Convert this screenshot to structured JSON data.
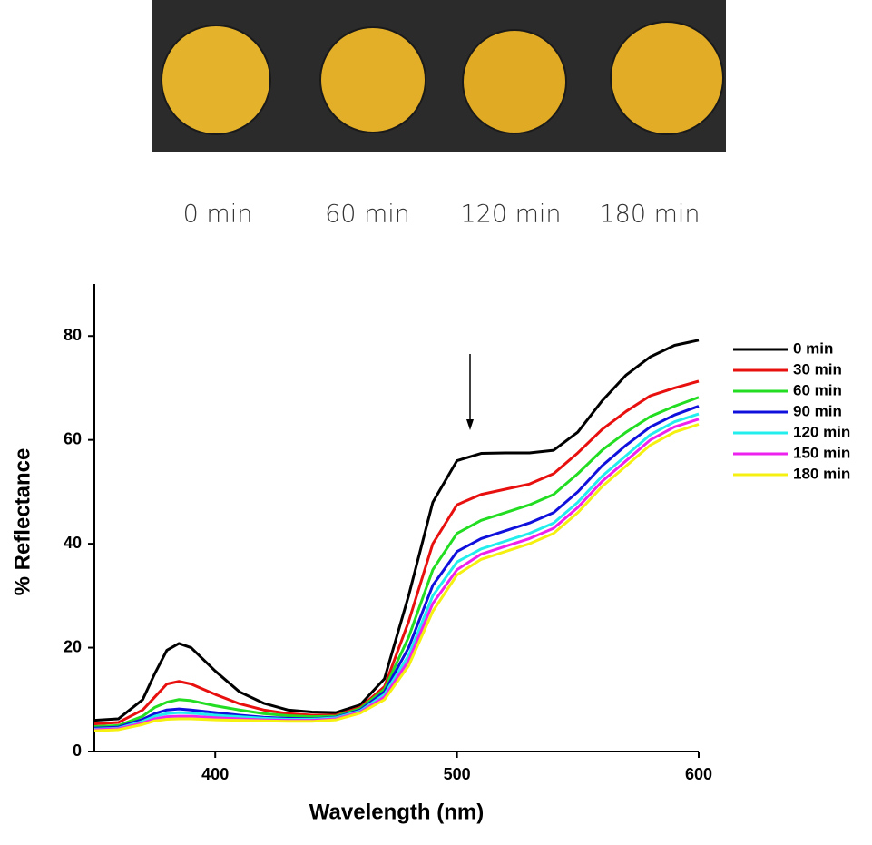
{
  "photo_labels": [
    "0 min",
    "60 min",
    "120 min",
    "180 min"
  ],
  "chart_data": {
    "type": "line",
    "xlabel": "Wavelength (nm)",
    "ylabel": "% Reflectance",
    "xlim": [
      350,
      600
    ],
    "ylim": [
      0,
      90
    ],
    "xticks": [
      400,
      500,
      600
    ],
    "yticks": [
      0,
      20,
      40,
      60,
      80
    ],
    "legend": "right",
    "x": [
      350,
      360,
      370,
      375,
      380,
      385,
      390,
      400,
      410,
      420,
      430,
      440,
      450,
      460,
      470,
      480,
      490,
      500,
      510,
      520,
      530,
      540,
      550,
      560,
      570,
      580,
      590,
      600
    ],
    "series": [
      {
        "name": "0 min",
        "color": "#000000",
        "values": [
          6,
          6.3,
          10,
          15,
          19.5,
          20.8,
          20,
          15.5,
          11.5,
          9.3,
          8,
          7.6,
          7.5,
          9,
          14,
          30,
          48,
          56,
          57.4,
          57.5,
          57.5,
          58,
          61.5,
          67.5,
          72.5,
          76,
          78.2,
          79.2
        ]
      },
      {
        "name": "30 min",
        "color": "#e8100f",
        "values": [
          5.3,
          5.6,
          8,
          10.5,
          13,
          13.5,
          13,
          11,
          9.2,
          8,
          7.3,
          7,
          7,
          8.5,
          12.5,
          25,
          40,
          47.5,
          49.5,
          50.5,
          51.5,
          53.5,
          57.5,
          62,
          65.5,
          68.5,
          70,
          71.3
        ]
      },
      {
        "name": "60 min",
        "color": "#22dd22",
        "values": [
          4.8,
          5,
          6.8,
          8.5,
          9.5,
          10,
          9.8,
          8.8,
          8,
          7.3,
          6.9,
          6.7,
          6.8,
          8.3,
          12,
          22,
          35,
          42,
          44.5,
          46,
          47.5,
          49.5,
          53.5,
          58,
          61.5,
          64.5,
          66.5,
          68.2
        ]
      },
      {
        "name": "90 min",
        "color": "#1010dd",
        "values": [
          4.5,
          4.7,
          6.2,
          7.3,
          8,
          8.2,
          8,
          7.5,
          7,
          6.6,
          6.4,
          6.3,
          6.6,
          8,
          11.5,
          20,
          32,
          38.5,
          41,
          42.5,
          44,
          46,
          50,
          55,
          59,
          62.5,
          64.8,
          66.5
        ]
      },
      {
        "name": "120 min",
        "color": "#22eeee",
        "values": [
          4.3,
          4.5,
          5.8,
          6.8,
          7.3,
          7.5,
          7.4,
          7,
          6.7,
          6.4,
          6.2,
          6.2,
          6.5,
          7.8,
          11,
          18.5,
          30,
          36.5,
          39,
          40.5,
          42,
          44,
          48,
          53,
          57,
          61,
          63.5,
          65
        ]
      },
      {
        "name": "150 min",
        "color": "#ee22ee",
        "values": [
          4.2,
          4.4,
          5.5,
          6.3,
          6.7,
          6.8,
          6.8,
          6.5,
          6.3,
          6.1,
          6,
          6,
          6.3,
          7.6,
          10.5,
          17.5,
          28.5,
          35,
          38,
          39.5,
          41,
          43,
          47,
          52,
          56,
          60,
          62.5,
          64
        ]
      },
      {
        "name": "180 min",
        "color": "#f5f010",
        "values": [
          4,
          4.2,
          5.2,
          5.9,
          6.2,
          6.3,
          6.3,
          6.1,
          6,
          5.9,
          5.8,
          5.8,
          6.1,
          7.4,
          10,
          16.5,
          27,
          34,
          37,
          38.5,
          40,
          42,
          46,
          51,
          55,
          59,
          61.5,
          63
        ]
      }
    ]
  }
}
